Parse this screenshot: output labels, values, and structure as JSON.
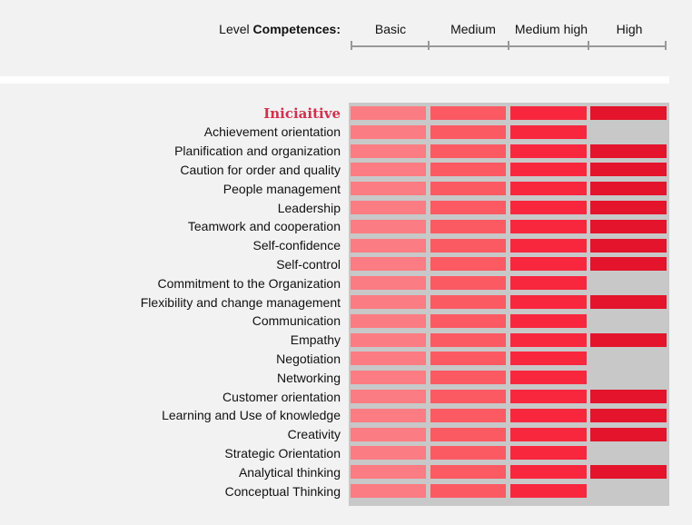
{
  "header": {
    "prefix": "Level",
    "bold": "Competences:"
  },
  "levels": [
    "Basic",
    "Medium",
    "Medium high",
    "High"
  ],
  "colors": {
    "level_fill": [
      "#fb7c82",
      "#fb5a63",
      "#f8273e",
      "#e3142b"
    ],
    "empty_cell": "#c8c8c8",
    "title": "#d0314f"
  },
  "chart_data": {
    "type": "table",
    "title": "Iniciaitive",
    "columns": [
      "Basic",
      "Medium",
      "Medium high",
      "High"
    ],
    "rows": [
      {
        "label": "Achievement orientation",
        "level": 3
      },
      {
        "label": "Planification and organization",
        "level": 4
      },
      {
        "label": "Caution for order and quality",
        "level": 4
      },
      {
        "label": "People management",
        "level": 4
      },
      {
        "label": "Leadership",
        "level": 4
      },
      {
        "label": "Teamwork and cooperation",
        "level": 4
      },
      {
        "label": "Self-confidence",
        "level": 4
      },
      {
        "label": "Self-control",
        "level": 4
      },
      {
        "label": "Commitment to the Organization",
        "level": 3
      },
      {
        "label": "Flexibility and change management",
        "level": 4
      },
      {
        "label": "Communication",
        "level": 3
      },
      {
        "label": "Empathy",
        "level": 4
      },
      {
        "label": "Negotiation",
        "level": 3
      },
      {
        "label": "Networking",
        "level": 3
      },
      {
        "label": "Customer orientation",
        "level": 4
      },
      {
        "label": "Learning and Use of knowledge",
        "level": 4
      },
      {
        "label": "Creativity",
        "level": 4
      },
      {
        "label": "Strategic Orientation",
        "level": 3
      },
      {
        "label": "Analytical thinking",
        "level": 4
      },
      {
        "label": "Conceptual Thinking",
        "level": 3
      }
    ],
    "title_level": 4
  }
}
